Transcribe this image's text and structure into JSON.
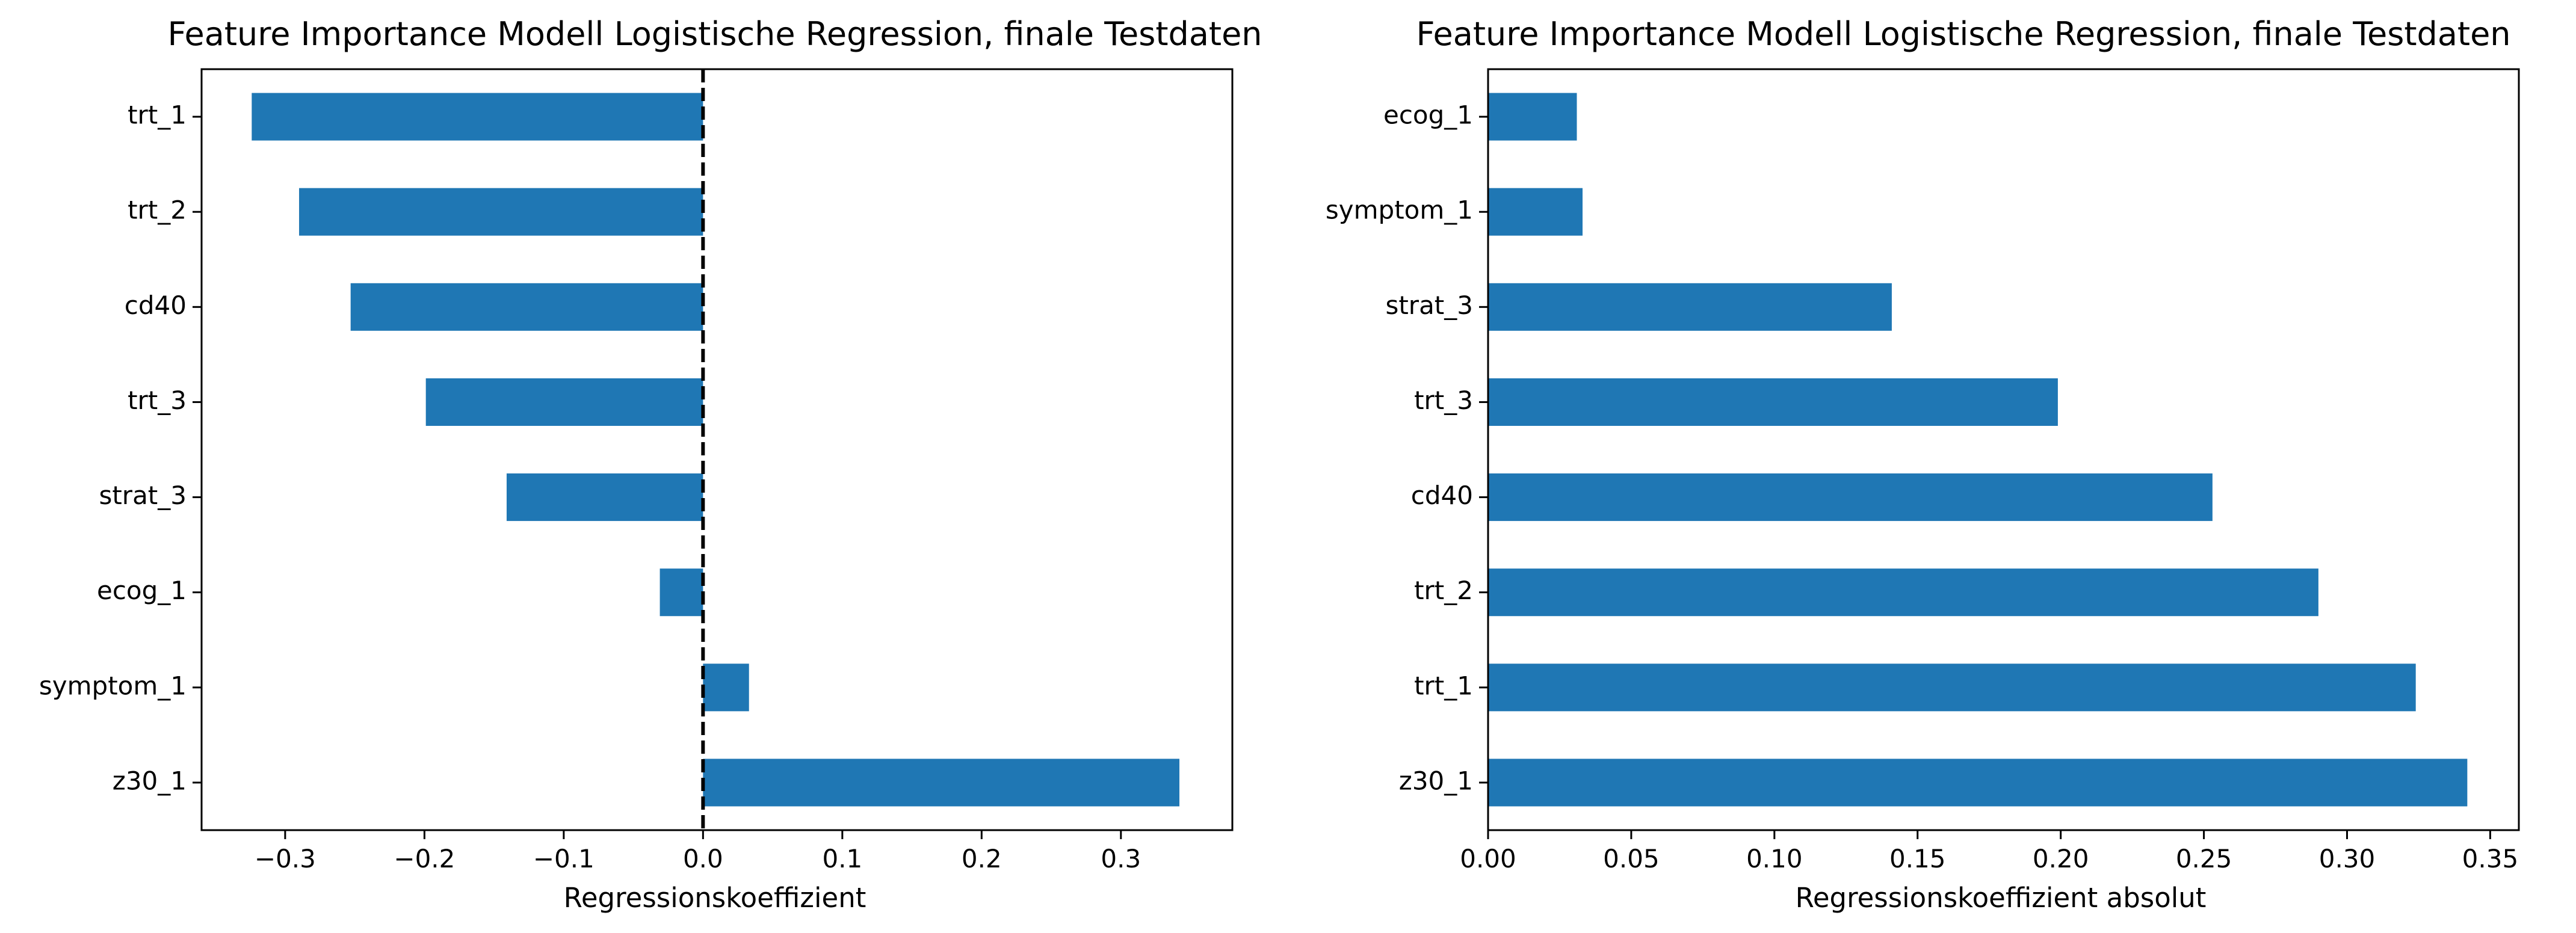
{
  "chart_data": [
    {
      "type": "bar",
      "orientation": "horizontal",
      "title": "Feature Importance Modell Logistische Regression, finale Testdaten",
      "xlabel": "Regressionskoeffizient",
      "ylabel": "",
      "categories": [
        "trt_1",
        "trt_2",
        "cd40",
        "trt_3",
        "strat_3",
        "ecog_1",
        "symptom_1",
        "z30_1"
      ],
      "values": [
        -0.324,
        -0.29,
        -0.253,
        -0.199,
        -0.141,
        -0.031,
        0.033,
        0.342
      ],
      "xlim": [
        -0.36,
        0.38
      ],
      "xticks": [
        -0.3,
        -0.2,
        -0.1,
        0.0,
        0.1,
        0.2,
        0.3
      ],
      "xtick_labels": [
        "−0.3",
        "−0.2",
        "−0.1",
        "0.0",
        "0.1",
        "0.2",
        "0.3"
      ],
      "reference_line": {
        "x": 0.0,
        "style": "dashed",
        "color": "#000000"
      },
      "bar_color": "#1f77b4",
      "grid": false
    },
    {
      "type": "bar",
      "orientation": "horizontal",
      "title": "Feature Importance Modell Logistische Regression, finale Testdaten",
      "xlabel": "Regressionskoeffizient absolut",
      "ylabel": "",
      "categories": [
        "ecog_1",
        "symptom_1",
        "strat_3",
        "trt_3",
        "cd40",
        "trt_2",
        "trt_1",
        "z30_1"
      ],
      "values": [
        0.031,
        0.033,
        0.141,
        0.199,
        0.253,
        0.29,
        0.324,
        0.342
      ],
      "xlim": [
        0.0,
        0.36
      ],
      "xticks": [
        0.0,
        0.05,
        0.1,
        0.15,
        0.2,
        0.25,
        0.3,
        0.35
      ],
      "xtick_labels": [
        "0.00",
        "0.05",
        "0.10",
        "0.15",
        "0.20",
        "0.25",
        "0.30",
        "0.35"
      ],
      "bar_color": "#1f77b4",
      "grid": false
    }
  ]
}
